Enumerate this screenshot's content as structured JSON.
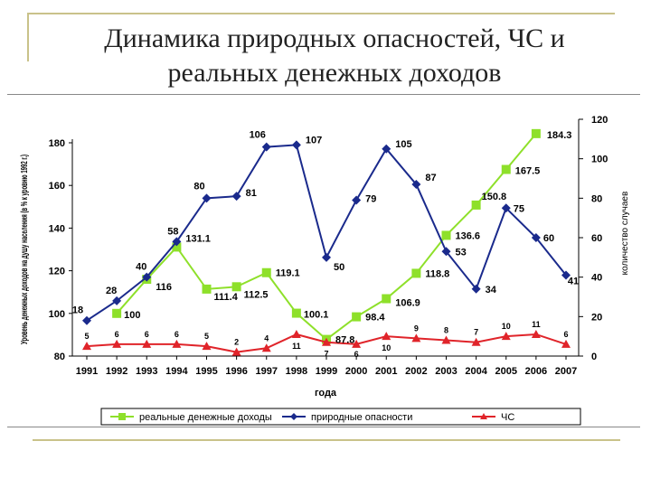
{
  "slide": {
    "title_line1": "Динамика природных опасностей, ЧС и",
    "title_line2": "реальных денежных доходов"
  },
  "colors": {
    "income": "#8ee02a",
    "hazards": "#1a2a8c",
    "emergencies": "#e0242a",
    "frame": "#c9c28a"
  },
  "chart_data": {
    "type": "line",
    "title": "",
    "xlabel": "года",
    "ylabel_left": "Уровень денежных доходов на душу населения (в % к уровню 1992 г.)",
    "ylabel_right": "количество случаев",
    "x": [
      1991,
      1992,
      1993,
      1994,
      1995,
      1996,
      1997,
      1998,
      1999,
      2000,
      2001,
      2002,
      2003,
      2004,
      2005,
      2006,
      2007
    ],
    "ylim_left": [
      80,
      180
    ],
    "yticks_left": [
      80,
      100,
      120,
      140,
      160,
      180
    ],
    "ylim_right": [
      0,
      120
    ],
    "yticks_right": [
      0,
      20,
      40,
      60,
      80,
      100,
      120
    ],
    "grid": false,
    "legend_position": "bottom",
    "series": [
      {
        "name": "реальные денежные доходы",
        "axis": "left",
        "marker": "square",
        "x": [
          1992,
          1993,
          1994,
          1995,
          1996,
          1997,
          1998,
          1999,
          2000,
          2001,
          2002,
          2003,
          2004,
          2005,
          2006
        ],
        "values": [
          100,
          116,
          131.1,
          111.4,
          112.5,
          119.1,
          100.1,
          87.8,
          98.4,
          106.9,
          118.8,
          136.6,
          150.8,
          167.5,
          184.3
        ],
        "labels": [
          "100",
          "116",
          "131.1",
          "111.4",
          "112.5",
          "119.1",
          "100.1",
          "87.8",
          "98.4",
          "106.9",
          "118.8",
          "136.6",
          "150.8",
          "167.5",
          "184.3"
        ]
      },
      {
        "name": "природные опасности",
        "axis": "right",
        "marker": "diamond",
        "x": [
          1991,
          1992,
          1993,
          1994,
          1995,
          1996,
          1997,
          1998,
          1999,
          2000,
          2001,
          2002,
          2003,
          2004,
          2005,
          2006,
          2007
        ],
        "values": [
          18,
          28,
          40,
          58,
          80,
          81,
          106,
          107,
          50,
          79,
          105,
          87,
          53,
          34,
          75,
          60,
          41
        ],
        "labels": [
          "18",
          "28",
          "40",
          "58",
          "80",
          "81",
          "106",
          "107",
          "50",
          "79",
          "105",
          "87",
          "53",
          "34",
          "75",
          "60",
          "41"
        ]
      },
      {
        "name": "ЧС",
        "axis": "right",
        "marker": "triangle",
        "x": [
          1991,
          1992,
          1993,
          1994,
          1995,
          1996,
          1997,
          1998,
          1999,
          2000,
          2001,
          2002,
          2003,
          2004,
          2005,
          2006,
          2007
        ],
        "values": [
          5,
          6,
          6,
          6,
          5,
          2,
          4,
          11,
          7,
          6,
          10,
          9,
          8,
          7,
          10,
          11,
          6
        ],
        "labels": [
          "5",
          "6",
          "6",
          "6",
          "5",
          "2",
          "4",
          "11",
          "7",
          "6",
          "10",
          "9",
          "8",
          "7",
          "10",
          "11",
          "6"
        ]
      }
    ]
  }
}
